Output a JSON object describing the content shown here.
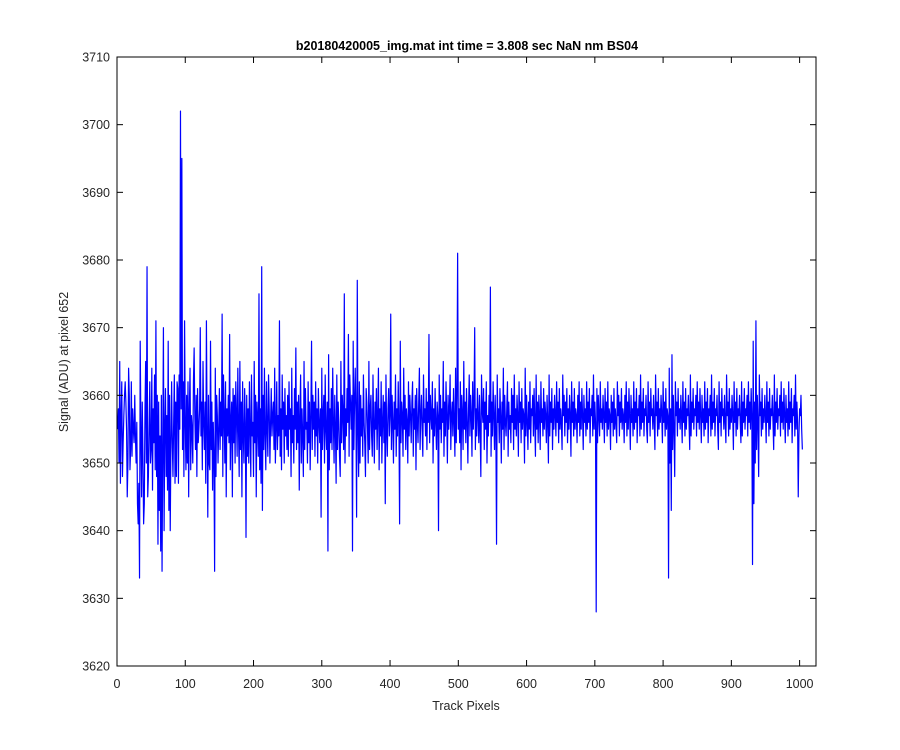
{
  "chart_data": {
    "type": "line",
    "title": "b20180420005_img.mat int time = 3.808 sec  NaN nm BS04",
    "xlabel": "Track Pixels",
    "ylabel": "Signal (ADU) at pixel 652",
    "xlim": [
      0,
      1024
    ],
    "ylim": [
      3620,
      3710
    ],
    "xticks": [
      0,
      100,
      200,
      300,
      400,
      500,
      600,
      700,
      800,
      900,
      1000
    ],
    "yticks": [
      3620,
      3630,
      3640,
      3650,
      3660,
      3670,
      3680,
      3690,
      3700,
      3710
    ],
    "grid": false,
    "series": [
      {
        "color": "#0000ff",
        "x_start": 1,
        "x_step": 1,
        "values": [
          3655,
          3658,
          3650,
          3665,
          3647,
          3657,
          3662,
          3648,
          3653,
          3657,
          3660,
          3662,
          3659,
          3655,
          3645,
          3650,
          3664,
          3660,
          3649,
          3652,
          3662,
          3651,
          3658,
          3655,
          3653,
          3660,
          3654,
          3650,
          3656,
          3644,
          3641,
          3647,
          3633,
          3668,
          3655,
          3645,
          3659,
          3651,
          3641,
          3644,
          3658,
          3665,
          3650,
          3679,
          3645,
          3648,
          3655,
          3662,
          3650,
          3652,
          3664,
          3646,
          3658,
          3653,
          3663,
          3649,
          3671,
          3648,
          3660,
          3638,
          3659,
          3643,
          3654,
          3637,
          3660,
          3634,
          3652,
          3670,
          3640,
          3655,
          3661,
          3648,
          3657,
          3646,
          3668,
          3643,
          3660,
          3640,
          3653,
          3662,
          3653,
          3648,
          3656,
          3663,
          3647,
          3659,
          3648,
          3662,
          3661,
          3647,
          3663,
          3655,
          3702,
          3658,
          3695,
          3652,
          3662,
          3648,
          3671,
          3656,
          3649,
          3660,
          3650,
          3662,
          3645,
          3658,
          3664,
          3649,
          3657,
          3655,
          3650,
          3662,
          3667,
          3657,
          3652,
          3660,
          3648,
          3661,
          3653,
          3655,
          3658,
          3670,
          3654,
          3659,
          3649,
          3665,
          3656,
          3652,
          3659,
          3647,
          3671,
          3655,
          3642,
          3660,
          3650,
          3649,
          3668,
          3652,
          3659,
          3646,
          3656,
          3651,
          3634,
          3664,
          3648,
          3660,
          3657,
          3650,
          3655,
          3661,
          3652,
          3659,
          3654,
          3672,
          3648,
          3663,
          3657,
          3650,
          3662,
          3645,
          3658,
          3654,
          3660,
          3653,
          3669,
          3649,
          3656,
          3659,
          3645,
          3661,
          3653,
          3660,
          3650,
          3662,
          3657,
          3651,
          3664,
          3655,
          3648,
          3665,
          3652,
          3659,
          3645,
          3662,
          3654,
          3650,
          3661,
          3656,
          3639,
          3660,
          3651,
          3658,
          3650,
          3662,
          3655,
          3648,
          3663,
          3654,
          3656,
          3648,
          3665,
          3653,
          3660,
          3645,
          3659,
          3656,
          3651,
          3675,
          3649,
          3658,
          3647,
          3679,
          3643,
          3660,
          3652,
          3664,
          3654,
          3649,
          3662,
          3655,
          3651,
          3663,
          3658,
          3650,
          3656,
          3661,
          3654,
          3657,
          3659,
          3652,
          3664,
          3650,
          3655,
          3662,
          3652,
          3657,
          3654,
          3671,
          3651,
          3658,
          3649,
          3663,
          3655,
          3659,
          3650,
          3661,
          3654,
          3657,
          3652,
          3660,
          3651,
          3662,
          3655,
          3658,
          3648,
          3664,
          3653,
          3657,
          3650,
          3661,
          3655,
          3667,
          3652,
          3659,
          3653,
          3660,
          3646,
          3657,
          3663,
          3650,
          3658,
          3654,
          3648,
          3665,
          3652,
          3661,
          3655,
          3656,
          3650,
          3662,
          3653,
          3659,
          3649,
          3657,
          3668,
          3652,
          3660,
          3655,
          3659,
          3651,
          3662,
          3654,
          3658,
          3650,
          3661,
          3656,
          3653,
          3658,
          3642,
          3664,
          3652,
          3657,
          3660,
          3650,
          3663,
          3655,
          3652,
          3659,
          3637,
          3666,
          3649,
          3658,
          3653,
          3661,
          3652,
          3664,
          3656,
          3650,
          3660,
          3655,
          3647,
          3663,
          3652,
          3659,
          3656,
          3651,
          3648,
          3665,
          3653,
          3660,
          3657,
          3652,
          3675,
          3650,
          3658,
          3654,
          3661,
          3656,
          3669,
          3651,
          3663,
          3659,
          3655,
          3660,
          3637,
          3668,
          3652,
          3659,
          3664,
          3657,
          3642,
          3677,
          3655,
          3648,
          3662,
          3650,
          3660,
          3654,
          3658,
          3651,
          3663,
          3656,
          3653,
          3648,
          3661,
          3659,
          3655,
          3650,
          3665,
          3652,
          3658,
          3660,
          3654,
          3651,
          3663,
          3656,
          3650,
          3659,
          3655,
          3661,
          3652,
          3657,
          3664,
          3649,
          3658,
          3654,
          3662,
          3650,
          3656,
          3660,
          3653,
          3659,
          3644,
          3663,
          3655,
          3651,
          3658,
          3661,
          3654,
          3657,
          3672,
          3652,
          3660,
          3656,
          3650,
          3659,
          3655,
          3663,
          3651,
          3658,
          3654,
          3662,
          3656,
          3641,
          3668,
          3653,
          3659,
          3657,
          3651,
          3664,
          3655,
          3660,
          3652,
          3658,
          3656,
          3650,
          3662,
          3654,
          3660,
          3657,
          3653,
          3659,
          3662,
          3651,
          3658,
          3655,
          3660,
          3649,
          3661,
          3656,
          3653,
          3659,
          3664,
          3652,
          3657,
          3660,
          3655,
          3651,
          3663,
          3656,
          3658,
          3654,
          3661,
          3652,
          3659,
          3656,
          3669,
          3653,
          3660,
          3657,
          3655,
          3662,
          3650,
          3658,
          3654,
          3661,
          3656,
          3652,
          3659,
          3657,
          3640,
          3663,
          3655,
          3660,
          3653,
          3658,
          3656,
          3665,
          3651,
          3659,
          3654,
          3662,
          3657,
          3650,
          3660,
          3655,
          3658,
          3663,
          3652,
          3657,
          3659,
          3654,
          3661,
          3656,
          3651,
          3664,
          3653,
          3660,
          3681,
          3655,
          3658,
          3653,
          3662,
          3649,
          3660,
          3657,
          3652,
          3665,
          3655,
          3659,
          3653,
          3661,
          3656,
          3650,
          3658,
          3663,
          3654,
          3660,
          3657,
          3651,
          3662,
          3655,
          3659,
          3670,
          3652,
          3658,
          3654,
          3661,
          3657,
          3653,
          3660,
          3655,
          3648,
          3663,
          3658,
          3656,
          3661,
          3652,
          3659,
          3655,
          3662,
          3650,
          3657,
          3654,
          3660,
          3656,
          3676,
          3651,
          3659,
          3654,
          3662,
          3657,
          3652,
          3660,
          3655,
          3638,
          3663,
          3656,
          3658,
          3653,
          3661,
          3657,
          3650,
          3659,
          3655,
          3664,
          3652,
          3660,
          3656,
          3654,
          3658,
          3662,
          3651,
          3659,
          3655,
          3657,
          3653,
          3661,
          3656,
          3660,
          3652,
          3663,
          3655,
          3658,
          3654,
          3660,
          3657,
          3651,
          3662,
          3656,
          3659,
          3653,
          3661,
          3655,
          3658,
          3657,
          3650,
          3664,
          3654,
          3660,
          3656,
          3652,
          3659,
          3655,
          3662,
          3653,
          3658,
          3657,
          3660,
          3654,
          3661,
          3656,
          3651,
          3663,
          3655,
          3659,
          3653,
          3660,
          3657,
          3652,
          3662,
          3656,
          3658,
          3654,
          3661,
          3655,
          3659,
          3657,
          3653,
          3660,
          3656,
          3650,
          3663,
          3654,
          3659,
          3656,
          3661,
          3652,
          3658,
          3655,
          3660,
          3657,
          3654,
          3662,
          3656,
          3659,
          3653,
          3661,
          3655,
          3658,
          3656,
          3652,
          3663,
          3657,
          3660,
          3654,
          3659,
          3656,
          3661,
          3653,
          3658,
          3655,
          3660,
          3657,
          3651,
          3662,
          3656,
          3659,
          3654,
          3661,
          3655,
          3658,
          3657,
          3653,
          3660,
          3656,
          3662,
          3654,
          3659,
          3655,
          3661,
          3657,
          3652,
          3660,
          3656,
          3658,
          3654,
          3662,
          3655,
          3659,
          3656,
          3661,
          3653,
          3658,
          3657,
          3660,
          3654,
          3663,
          3655,
          3659,
          3656,
          3628,
          3661,
          3653,
          3660,
          3657,
          3654,
          3662,
          3656,
          3658,
          3655,
          3660,
          3657,
          3653,
          3661,
          3656,
          3659,
          3654,
          3662,
          3655,
          3658,
          3657,
          3652,
          3660,
          3656,
          3659,
          3654,
          3661,
          3655,
          3658,
          3656,
          3653,
          3662,
          3657,
          3660,
          3654,
          3659,
          3656,
          3661,
          3655,
          3658,
          3657,
          3653,
          3660,
          3656,
          3662,
          3654,
          3659,
          3655,
          3661,
          3657,
          3652,
          3660,
          3656,
          3658,
          3654,
          3662,
          3655,
          3659,
          3656,
          3661,
          3653,
          3658,
          3657,
          3660,
          3654,
          3663,
          3655,
          3659,
          3656,
          3661,
          3654,
          3658,
          3657,
          3660,
          3655,
          3653,
          3662,
          3656,
          3659,
          3654,
          3661,
          3657,
          3658,
          3655,
          3660,
          3656,
          3652,
          3663,
          3657,
          3659,
          3654,
          3661,
          3655,
          3658,
          3656,
          3660,
          3657,
          3653,
          3662,
          3656,
          3659,
          3654,
          3661,
          3655,
          3658,
          3657,
          3633,
          3664,
          3650,
          3658,
          3643,
          3666,
          3652,
          3660,
          3655,
          3648,
          3662,
          3657,
          3659,
          3654,
          3661,
          3656,
          3658,
          3655,
          3660,
          3657,
          3653,
          3662,
          3656,
          3659,
          3654,
          3661,
          3655,
          3658,
          3657,
          3660,
          3656,
          3652,
          3663,
          3654,
          3659,
          3656,
          3661,
          3655,
          3658,
          3657,
          3660,
          3654,
          3662,
          3656,
          3659,
          3655,
          3661,
          3657,
          3653,
          3660,
          3656,
          3658,
          3654,
          3662,
          3655,
          3659,
          3656,
          3661,
          3653,
          3658,
          3657,
          3660,
          3654,
          3663,
          3655,
          3659,
          3656,
          3661,
          3654,
          3658,
          3657,
          3660,
          3655,
          3652,
          3662,
          3656,
          3659,
          3654,
          3661,
          3657,
          3658,
          3655,
          3660,
          3656,
          3653,
          3663,
          3657,
          3659,
          3654,
          3661,
          3655,
          3658,
          3656,
          3660,
          3657,
          3652,
          3662,
          3656,
          3659,
          3654,
          3661,
          3655,
          3658,
          3657,
          3660,
          3656,
          3653,
          3662,
          3654,
          3659,
          3656,
          3661,
          3655,
          3658,
          3657,
          3660,
          3654,
          3662,
          3656,
          3659,
          3655,
          3661,
          3657,
          3635,
          3668,
          3644,
          3659,
          3650,
          3671,
          3652,
          3660,
          3656,
          3648,
          3663,
          3657,
          3659,
          3654,
          3661,
          3655,
          3658,
          3656,
          3660,
          3657,
          3653,
          3662,
          3656,
          3659,
          3654,
          3661,
          3655,
          3658,
          3657,
          3660,
          3656,
          3652,
          3663,
          3654,
          3659,
          3656,
          3661,
          3655,
          3658,
          3657,
          3660,
          3654,
          3662,
          3656,
          3659,
          3655,
          3661,
          3657,
          3653,
          3660,
          3656,
          3658,
          3654,
          3662,
          3655,
          3659,
          3656,
          3661,
          3653,
          3658,
          3657,
          3660,
          3654,
          3663,
          3655,
          3659,
          3656,
          3645,
          3654,
          3658,
          3657,
          3660,
          3655,
          3652
        ]
      }
    ]
  }
}
